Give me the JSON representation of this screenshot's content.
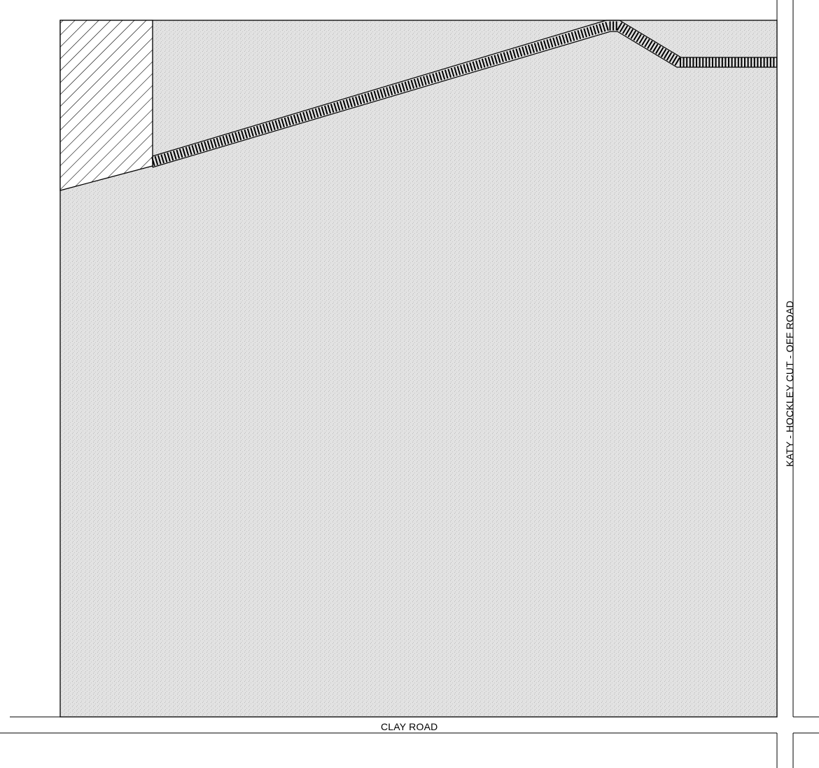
{
  "map": {
    "title": "",
    "roads": {
      "south": "CLAY ROAD",
      "east": "KATY - HOCKLEY CUT - OFF ROAD"
    },
    "legend": [],
    "colors": {
      "ink": "#000000",
      "parcel_fill": "#d9d9d9",
      "background": "#ffffff"
    }
  }
}
